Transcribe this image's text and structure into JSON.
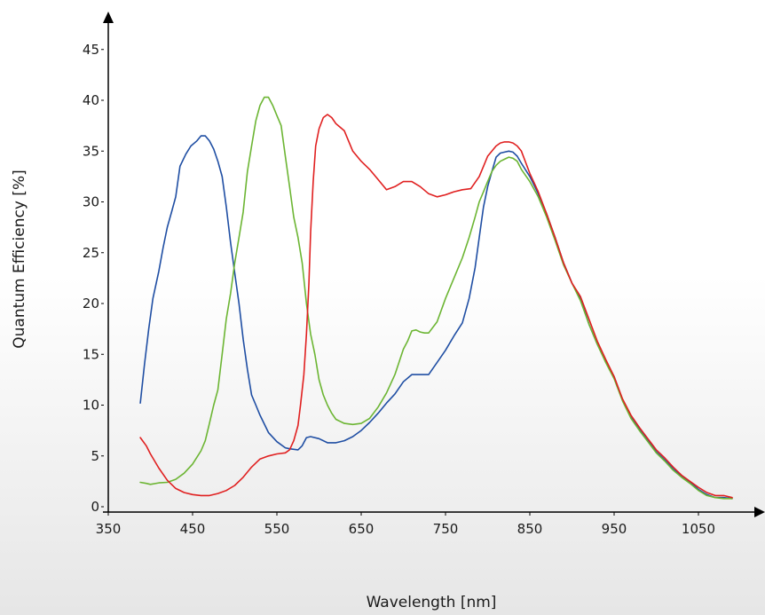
{
  "chart_data": {
    "type": "line",
    "title": "",
    "xlabel": "Wavelength [nm]",
    "ylabel": "Quantum Efficiency [%]",
    "xlim": [
      350,
      1100
    ],
    "ylim": [
      0,
      45
    ],
    "x_ticks": [
      350,
      450,
      550,
      650,
      750,
      850,
      950,
      1050
    ],
    "x_tick_labels": [
      "350",
      "450",
      "550",
      "650",
      "750",
      "850",
      "950",
      "1050"
    ],
    "y_ticks": [
      0,
      5,
      10,
      15,
      20,
      25,
      30,
      35,
      40,
      45
    ],
    "y_tick_labels": [
      "0",
      "5",
      "10",
      "15",
      "20",
      "25",
      "30",
      "35",
      "40",
      "45"
    ],
    "grid": false,
    "legend": "none",
    "series": [
      {
        "color": "#1f4ea3",
        "points": [
          [
            388,
            10.2
          ],
          [
            393,
            14
          ],
          [
            398,
            17.5
          ],
          [
            403,
            20.5
          ],
          [
            410,
            23.2
          ],
          [
            415,
            25.5
          ],
          [
            420,
            27.5
          ],
          [
            425,
            29
          ],
          [
            430,
            30.5
          ],
          [
            435,
            33.5
          ],
          [
            442,
            34.7
          ],
          [
            448,
            35.5
          ],
          [
            455,
            36
          ],
          [
            460,
            36.5
          ],
          [
            465,
            36.5
          ],
          [
            470,
            36
          ],
          [
            475,
            35.2
          ],
          [
            480,
            34
          ],
          [
            485,
            32.5
          ],
          [
            490,
            29.5
          ],
          [
            495,
            26
          ],
          [
            500,
            23
          ],
          [
            505,
            20
          ],
          [
            510,
            16.5
          ],
          [
            515,
            13.5
          ],
          [
            520,
            11
          ],
          [
            525,
            10
          ],
          [
            530,
            9
          ],
          [
            540,
            7.3
          ],
          [
            550,
            6.4
          ],
          [
            560,
            5.8
          ],
          [
            565,
            5.7
          ],
          [
            575,
            5.6
          ],
          [
            580,
            6
          ],
          [
            585,
            6.8
          ],
          [
            590,
            6.9
          ],
          [
            600,
            6.7
          ],
          [
            610,
            6.3
          ],
          [
            620,
            6.3
          ],
          [
            630,
            6.5
          ],
          [
            640,
            6.9
          ],
          [
            650,
            7.5
          ],
          [
            660,
            8.3
          ],
          [
            670,
            9.2
          ],
          [
            680,
            10.2
          ],
          [
            690,
            11.1
          ],
          [
            700,
            12.3
          ],
          [
            710,
            13
          ],
          [
            720,
            13
          ],
          [
            730,
            13
          ],
          [
            740,
            14.2
          ],
          [
            750,
            15.4
          ],
          [
            760,
            16.8
          ],
          [
            770,
            18.1
          ],
          [
            778,
            20.5
          ],
          [
            785,
            23.5
          ],
          [
            790,
            26.5
          ],
          [
            795,
            29.5
          ],
          [
            800,
            31.5
          ],
          [
            805,
            33
          ],
          [
            810,
            34.4
          ],
          [
            815,
            34.8
          ],
          [
            820,
            34.9
          ],
          [
            825,
            35
          ],
          [
            830,
            34.9
          ],
          [
            835,
            34.5
          ],
          [
            840,
            33.8
          ],
          [
            850,
            32.5
          ],
          [
            860,
            30.8
          ],
          [
            870,
            28.8
          ],
          [
            880,
            26.5
          ],
          [
            890,
            24
          ],
          [
            900,
            22
          ],
          [
            910,
            20.5
          ],
          [
            920,
            18
          ],
          [
            930,
            16
          ],
          [
            940,
            14.3
          ],
          [
            950,
            12.8
          ],
          [
            960,
            10.5
          ],
          [
            970,
            8.8
          ],
          [
            980,
            7.6
          ],
          [
            990,
            6.5
          ],
          [
            1000,
            5.4
          ],
          [
            1010,
            4.6
          ],
          [
            1020,
            3.7
          ],
          [
            1030,
            3
          ],
          [
            1040,
            2.4
          ],
          [
            1050,
            1.7
          ],
          [
            1060,
            1.2
          ],
          [
            1070,
            0.9
          ],
          [
            1080,
            0.9
          ],
          [
            1090,
            0.8
          ]
        ]
      },
      {
        "color": "#6cb533",
        "points": [
          [
            388,
            2.4
          ],
          [
            395,
            2.3
          ],
          [
            400,
            2.2
          ],
          [
            410,
            2.35
          ],
          [
            420,
            2.4
          ],
          [
            430,
            2.7
          ],
          [
            440,
            3.3
          ],
          [
            450,
            4.2
          ],
          [
            460,
            5.5
          ],
          [
            465,
            6.5
          ],
          [
            470,
            8.2
          ],
          [
            475,
            10
          ],
          [
            480,
            11.5
          ],
          [
            485,
            15
          ],
          [
            490,
            18.5
          ],
          [
            495,
            21
          ],
          [
            500,
            24
          ],
          [
            505,
            26.5
          ],
          [
            510,
            29
          ],
          [
            515,
            33
          ],
          [
            520,
            35.5
          ],
          [
            525,
            38
          ],
          [
            530,
            39.5
          ],
          [
            535,
            40.3
          ],
          [
            540,
            40.3
          ],
          [
            545,
            39.5
          ],
          [
            550,
            38.5
          ],
          [
            555,
            37.5
          ],
          [
            560,
            34.5
          ],
          [
            565,
            31.5
          ],
          [
            570,
            28.5
          ],
          [
            575,
            26.5
          ],
          [
            580,
            24
          ],
          [
            585,
            20
          ],
          [
            590,
            17
          ],
          [
            595,
            15
          ],
          [
            600,
            12.5
          ],
          [
            605,
            11
          ],
          [
            610,
            10
          ],
          [
            615,
            9.2
          ],
          [
            620,
            8.6
          ],
          [
            630,
            8.2
          ],
          [
            640,
            8.1
          ],
          [
            650,
            8.2
          ],
          [
            660,
            8.7
          ],
          [
            670,
            9.8
          ],
          [
            680,
            11.2
          ],
          [
            690,
            13
          ],
          [
            700,
            15.5
          ],
          [
            705,
            16.3
          ],
          [
            710,
            17.3
          ],
          [
            715,
            17.4
          ],
          [
            720,
            17.2
          ],
          [
            725,
            17.1
          ],
          [
            730,
            17.1
          ],
          [
            740,
            18.2
          ],
          [
            750,
            20.5
          ],
          [
            760,
            22.5
          ],
          [
            770,
            24.5
          ],
          [
            778,
            26.5
          ],
          [
            785,
            28.5
          ],
          [
            790,
            30
          ],
          [
            795,
            31
          ],
          [
            800,
            32
          ],
          [
            805,
            33
          ],
          [
            810,
            33.6
          ],
          [
            815,
            34
          ],
          [
            820,
            34.2
          ],
          [
            825,
            34.4
          ],
          [
            830,
            34.3
          ],
          [
            835,
            34
          ],
          [
            840,
            33.2
          ],
          [
            850,
            32
          ],
          [
            860,
            30.5
          ],
          [
            870,
            28.5
          ],
          [
            880,
            26.2
          ],
          [
            890,
            23.8
          ],
          [
            900,
            22
          ],
          [
            910,
            20.3
          ],
          [
            920,
            18
          ],
          [
            930,
            16
          ],
          [
            940,
            14.2
          ],
          [
            950,
            12.6
          ],
          [
            960,
            10.4
          ],
          [
            970,
            8.7
          ],
          [
            980,
            7.5
          ],
          [
            990,
            6.4
          ],
          [
            1000,
            5.3
          ],
          [
            1010,
            4.5
          ],
          [
            1020,
            3.6
          ],
          [
            1030,
            2.9
          ],
          [
            1040,
            2.3
          ],
          [
            1050,
            1.6
          ],
          [
            1060,
            1.1
          ],
          [
            1070,
            0.9
          ],
          [
            1080,
            0.8
          ],
          [
            1090,
            0.8
          ]
        ]
      },
      {
        "color": "#e02020",
        "points": [
          [
            388,
            6.8
          ],
          [
            395,
            6
          ],
          [
            400,
            5.2
          ],
          [
            410,
            3.8
          ],
          [
            420,
            2.6
          ],
          [
            430,
            1.8
          ],
          [
            440,
            1.4
          ],
          [
            450,
            1.2
          ],
          [
            460,
            1.1
          ],
          [
            470,
            1.1
          ],
          [
            480,
            1.3
          ],
          [
            490,
            1.6
          ],
          [
            500,
            2.1
          ],
          [
            510,
            2.9
          ],
          [
            520,
            3.9
          ],
          [
            530,
            4.7
          ],
          [
            540,
            5
          ],
          [
            550,
            5.2
          ],
          [
            560,
            5.3
          ],
          [
            565,
            5.6
          ],
          [
            570,
            6.5
          ],
          [
            575,
            8
          ],
          [
            578,
            10
          ],
          [
            582,
            13
          ],
          [
            585,
            17
          ],
          [
            588,
            22
          ],
          [
            590,
            27
          ],
          [
            593,
            32
          ],
          [
            596,
            35.5
          ],
          [
            600,
            37.2
          ],
          [
            605,
            38.3
          ],
          [
            610,
            38.6
          ],
          [
            615,
            38.3
          ],
          [
            620,
            37.7
          ],
          [
            630,
            37
          ],
          [
            640,
            35
          ],
          [
            650,
            34
          ],
          [
            660,
            33.2
          ],
          [
            670,
            32.2
          ],
          [
            680,
            31.2
          ],
          [
            690,
            31.5
          ],
          [
            700,
            32
          ],
          [
            710,
            32
          ],
          [
            720,
            31.5
          ],
          [
            730,
            30.8
          ],
          [
            740,
            30.5
          ],
          [
            750,
            30.7
          ],
          [
            760,
            31
          ],
          [
            770,
            31.2
          ],
          [
            780,
            31.3
          ],
          [
            790,
            32.5
          ],
          [
            795,
            33.5
          ],
          [
            800,
            34.5
          ],
          [
            810,
            35.5
          ],
          [
            815,
            35.8
          ],
          [
            820,
            35.9
          ],
          [
            825,
            35.9
          ],
          [
            830,
            35.8
          ],
          [
            835,
            35.5
          ],
          [
            840,
            35
          ],
          [
            850,
            32.8
          ],
          [
            860,
            31
          ],
          [
            870,
            28.8
          ],
          [
            880,
            26.5
          ],
          [
            890,
            24
          ],
          [
            900,
            22
          ],
          [
            910,
            20.7
          ],
          [
            920,
            18.5
          ],
          [
            930,
            16.3
          ],
          [
            940,
            14.5
          ],
          [
            950,
            12.8
          ],
          [
            960,
            10.6
          ],
          [
            970,
            9
          ],
          [
            980,
            7.8
          ],
          [
            990,
            6.7
          ],
          [
            1000,
            5.6
          ],
          [
            1010,
            4.8
          ],
          [
            1020,
            3.9
          ],
          [
            1030,
            3.1
          ],
          [
            1040,
            2.5
          ],
          [
            1050,
            1.9
          ],
          [
            1060,
            1.4
          ],
          [
            1070,
            1.1
          ],
          [
            1080,
            1.1
          ],
          [
            1090,
            0.9
          ]
        ]
      }
    ]
  }
}
